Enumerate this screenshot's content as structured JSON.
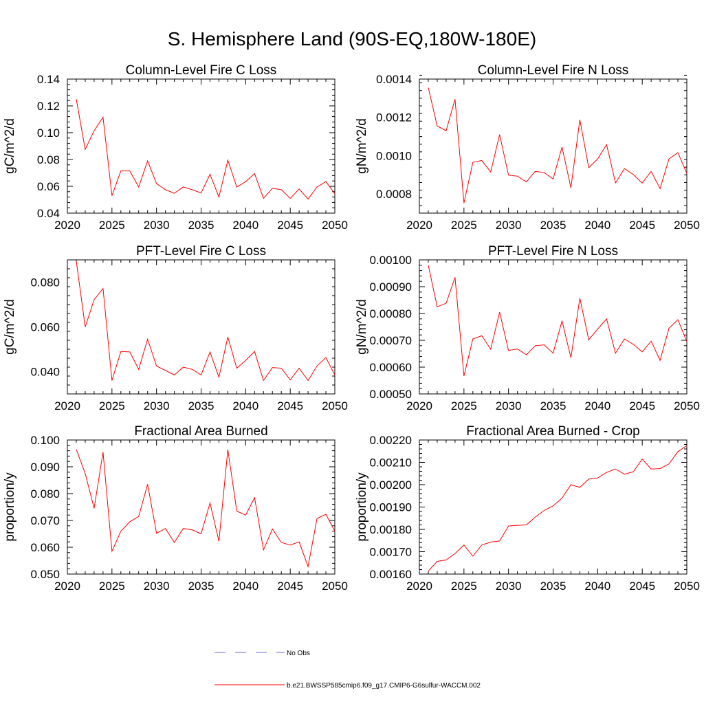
{
  "figure": {
    "title": "S. Hemisphere Land (90S-EQ,180W-180E)"
  },
  "legend": {
    "entries": [
      {
        "label": "No Obs",
        "color": "#6a6ad0",
        "style": "dashed"
      },
      {
        "label": "b.e21.BWSSP585cmip6.f09_g17.CMIP6-G6sulfur-WACCM.002",
        "color": "#ff0000",
        "style": "solid"
      }
    ]
  },
  "chart_data": [
    {
      "type": "line",
      "title": "Column-Level Fire C Loss",
      "ylabel": "gC/m^2/d",
      "xlim": [
        2020,
        2050
      ],
      "ylim": [
        0.04,
        0.14
      ],
      "xticks": [
        2020,
        2025,
        2030,
        2035,
        2040,
        2045,
        2050
      ],
      "xtick_labels": [
        "2020",
        "2025",
        "2030",
        "2035",
        "2040",
        "2045",
        "2050"
      ],
      "yticks": [
        0.04,
        0.06,
        0.08,
        0.1,
        0.12,
        0.14
      ],
      "ytick_labels": [
        "0.04",
        "0.06",
        "0.08",
        "0.10",
        "0.12",
        "0.14"
      ],
      "grid": false,
      "x": [
        2021,
        2022,
        2023,
        2024,
        2025,
        2026,
        2027,
        2028,
        2029,
        2030,
        2031,
        2032,
        2033,
        2034,
        2035,
        2036,
        2037,
        2038,
        2039,
        2040,
        2041,
        2042,
        2043,
        2044,
        2045,
        2046,
        2047,
        2048,
        2049,
        2050
      ],
      "series": [
        {
          "color": "#ff0000",
          "values": [
            0.125,
            0.0875,
            0.1015,
            0.1115,
            0.053,
            0.0715,
            0.0715,
            0.0595,
            0.079,
            0.062,
            0.0575,
            0.0548,
            0.0595,
            0.0575,
            0.055,
            0.069,
            0.052,
            0.0795,
            0.0595,
            0.0635,
            0.0695,
            0.051,
            0.0585,
            0.0575,
            0.051,
            0.058,
            0.0505,
            0.0595,
            0.0635,
            0.0545
          ]
        }
      ]
    },
    {
      "type": "line",
      "title": "Column-Level Fire N Loss",
      "ylabel": "gN/m^2/d",
      "xlim": [
        2020,
        2050
      ],
      "ylim": [
        0.0007,
        0.0014
      ],
      "xticks": [
        2020,
        2025,
        2030,
        2035,
        2040,
        2045,
        2050
      ],
      "xtick_labels": [
        "2020",
        "2025",
        "2030",
        "2035",
        "2040",
        "2045",
        "2050"
      ],
      "yticks": [
        0.0008,
        0.001,
        0.0012,
        0.0014
      ],
      "ytick_labels": [
        "0.0008",
        "0.0010",
        "0.0012",
        "0.0014"
      ],
      "grid": false,
      "x": [
        2021,
        2022,
        2023,
        2024,
        2025,
        2026,
        2027,
        2028,
        2029,
        2030,
        2031,
        2032,
        2033,
        2034,
        2035,
        2036,
        2037,
        2038,
        2039,
        2040,
        2041,
        2042,
        2043,
        2044,
        2045,
        2046,
        2047,
        2048,
        2049,
        2050
      ],
      "series": [
        {
          "color": "#ff0000",
          "values": [
            0.001355,
            0.001155,
            0.00113,
            0.001295,
            0.000752,
            0.000965,
            0.000975,
            0.000915,
            0.00111,
            0.000898,
            0.000893,
            0.000863,
            0.000918,
            0.000912,
            0.000878,
            0.001045,
            0.000832,
            0.001188,
            0.000937,
            0.000983,
            0.001058,
            0.000858,
            0.000932,
            0.000902,
            0.000857,
            0.000918,
            0.000828,
            0.000983,
            0.001016,
            0.000907
          ]
        }
      ]
    },
    {
      "type": "line",
      "title": "PFT-Level Fire C Loss",
      "ylabel": "gC/m^2/d",
      "xlim": [
        2020,
        2050
      ],
      "ylim": [
        0.03,
        0.09
      ],
      "xticks": [
        2020,
        2025,
        2030,
        2035,
        2040,
        2045,
        2050
      ],
      "xtick_labels": [
        "2020",
        "2025",
        "2030",
        "2035",
        "2040",
        "2045",
        "2050"
      ],
      "yticks": [
        0.04,
        0.06,
        0.08
      ],
      "ytick_labels": [
        "0.040",
        "0.060",
        "0.080"
      ],
      "grid": false,
      "x": [
        2021,
        2022,
        2023,
        2024,
        2025,
        2026,
        2027,
        2028,
        2029,
        2030,
        2031,
        2032,
        2033,
        2034,
        2035,
        2036,
        2037,
        2038,
        2039,
        2040,
        2041,
        2042,
        2043,
        2044,
        2045,
        2046,
        2047,
        2048,
        2049,
        2050
      ],
      "series": [
        {
          "color": "#ff0000",
          "values": [
            0.0895,
            0.06,
            0.0722,
            0.0772,
            0.036,
            0.049,
            0.0488,
            0.041,
            0.0545,
            0.0425,
            0.0405,
            0.0385,
            0.042,
            0.041,
            0.0385,
            0.0488,
            0.0375,
            0.0555,
            0.0415,
            0.045,
            0.049,
            0.036,
            0.0418,
            0.0415,
            0.0363,
            0.0415,
            0.036,
            0.0425,
            0.0463,
            0.0385
          ]
        }
      ]
    },
    {
      "type": "line",
      "title": "PFT-Level Fire N Loss",
      "ylabel": "gN/m^2/d",
      "xlim": [
        2020,
        2050
      ],
      "ylim": [
        0.0005,
        0.001
      ],
      "xticks": [
        2020,
        2025,
        2030,
        2035,
        2040,
        2045,
        2050
      ],
      "xtick_labels": [
        "2020",
        "2025",
        "2030",
        "2035",
        "2040",
        "2045",
        "2050"
      ],
      "yticks": [
        0.0005,
        0.0006,
        0.0007,
        0.0008,
        0.0009,
        0.001
      ],
      "ytick_labels": [
        "0.00050",
        "0.00060",
        "0.00070",
        "0.00080",
        "0.00090",
        "0.00100"
      ],
      "grid": false,
      "x": [
        2021,
        2022,
        2023,
        2024,
        2025,
        2026,
        2027,
        2028,
        2029,
        2030,
        2031,
        2032,
        2033,
        2034,
        2035,
        2036,
        2037,
        2038,
        2039,
        2040,
        2041,
        2042,
        2043,
        2044,
        2045,
        2046,
        2047,
        2048,
        2049,
        2050
      ],
      "series": [
        {
          "color": "#ff0000",
          "values": [
            0.00098,
            0.000825,
            0.000838,
            0.000935,
            0.000567,
            0.000705,
            0.000717,
            0.000667,
            0.000805,
            0.000662,
            0.000668,
            0.000646,
            0.00068,
            0.000683,
            0.000652,
            0.000772,
            0.000635,
            0.000857,
            0.000702,
            0.000742,
            0.00078,
            0.000652,
            0.000705,
            0.000685,
            0.000657,
            0.000697,
            0.000625,
            0.000745,
            0.000777,
            0.000695
          ]
        }
      ]
    },
    {
      "type": "line",
      "title": "Fractional Area Burned",
      "ylabel": "proportion/y",
      "xlim": [
        2020,
        2050
      ],
      "ylim": [
        0.05,
        0.1
      ],
      "xticks": [
        2020,
        2025,
        2030,
        2035,
        2040,
        2045,
        2050
      ],
      "xtick_labels": [
        "2020",
        "2025",
        "2030",
        "2035",
        "2040",
        "2045",
        "2050"
      ],
      "yticks": [
        0.05,
        0.06,
        0.07,
        0.08,
        0.09,
        0.1
      ],
      "ytick_labels": [
        "0.050",
        "0.060",
        "0.070",
        "0.080",
        "0.090",
        "0.100"
      ],
      "grid": false,
      "x": [
        2021,
        2022,
        2023,
        2024,
        2025,
        2026,
        2027,
        2028,
        2029,
        2030,
        2031,
        2032,
        2033,
        2034,
        2035,
        2036,
        2037,
        2038,
        2039,
        2040,
        2041,
        2042,
        2043,
        2044,
        2045,
        2046,
        2047,
        2048,
        2049,
        2050
      ],
      "series": [
        {
          "color": "#ff0000",
          "values": [
            0.0965,
            0.0875,
            0.0745,
            0.0955,
            0.0585,
            0.066,
            0.0695,
            0.0715,
            0.0835,
            0.0652,
            0.067,
            0.0618,
            0.067,
            0.0665,
            0.065,
            0.0765,
            0.0622,
            0.0965,
            0.0735,
            0.072,
            0.0785,
            0.059,
            0.0668,
            0.0618,
            0.0608,
            0.062,
            0.0528,
            0.0707,
            0.0723,
            0.066
          ]
        }
      ]
    },
    {
      "type": "line",
      "title": "Fractional Area Burned - Crop",
      "ylabel": "proportion/y",
      "xlim": [
        2020,
        2050
      ],
      "ylim": [
        0.0016,
        0.0022
      ],
      "xticks": [
        2020,
        2025,
        2030,
        2035,
        2040,
        2045,
        2050
      ],
      "xtick_labels": [
        "2020",
        "2025",
        "2030",
        "2035",
        "2040",
        "2045",
        "2050"
      ],
      "yticks": [
        0.0016,
        0.0017,
        0.0018,
        0.0019,
        0.002,
        0.0021,
        0.0022
      ],
      "ytick_labels": [
        "0.00160",
        "0.00170",
        "0.00180",
        "0.00190",
        "0.00200",
        "0.00210",
        "0.00220"
      ],
      "grid": false,
      "x": [
        2021,
        2022,
        2023,
        2024,
        2025,
        2026,
        2027,
        2028,
        2029,
        2030,
        2031,
        2032,
        2033,
        2034,
        2035,
        2036,
        2037,
        2038,
        2039,
        2040,
        2041,
        2042,
        2043,
        2044,
        2045,
        2046,
        2047,
        2048,
        2049,
        2050
      ],
      "series": [
        {
          "color": "#ff0000",
          "values": [
            0.001613,
            0.001657,
            0.001663,
            0.001692,
            0.00173,
            0.00168,
            0.00173,
            0.001743,
            0.001748,
            0.001815,
            0.001818,
            0.00182,
            0.001855,
            0.001885,
            0.001905,
            0.00194,
            0.002,
            0.001988,
            0.002025,
            0.00203,
            0.002055,
            0.00207,
            0.002047,
            0.002058,
            0.002115,
            0.00207,
            0.002072,
            0.002093,
            0.002148,
            0.002175
          ]
        }
      ]
    }
  ]
}
